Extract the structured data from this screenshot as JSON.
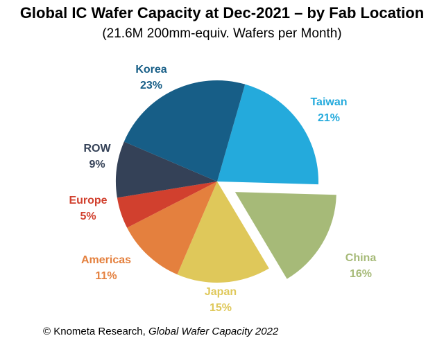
{
  "chart_data": {
    "type": "pie",
    "title": "Global IC Wafer Capacity at Dec-2021 – by Fab Location",
    "subtitle": "(21.6M 200mm-equiv. Wafers per Month)",
    "slices": [
      {
        "label": "Taiwan",
        "value": 21,
        "value_label": "21%",
        "color": "#24aadc",
        "exploded": false
      },
      {
        "label": "China",
        "value": 16,
        "value_label": "16%",
        "color": "#a6ba78",
        "exploded": true
      },
      {
        "label": "Japan",
        "value": 15,
        "value_label": "15%",
        "color": "#dfc85a",
        "exploded": false
      },
      {
        "label": "Americas",
        "value": 11,
        "value_label": "11%",
        "color": "#e4803e",
        "exploded": false
      },
      {
        "label": "Europe",
        "value": 5,
        "value_label": "5%",
        "color": "#d1402e",
        "exploded": false
      },
      {
        "label": "ROW",
        "value": 9,
        "value_label": "9%",
        "color": "#344157",
        "exploded": false
      },
      {
        "label": "Korea",
        "value": 23,
        "value_label": "23%",
        "color": "#175e87",
        "exploded": false
      }
    ]
  },
  "source": {
    "prefix": "© Knometa Research, ",
    "publication": "Global Wafer Capacity 2022"
  }
}
